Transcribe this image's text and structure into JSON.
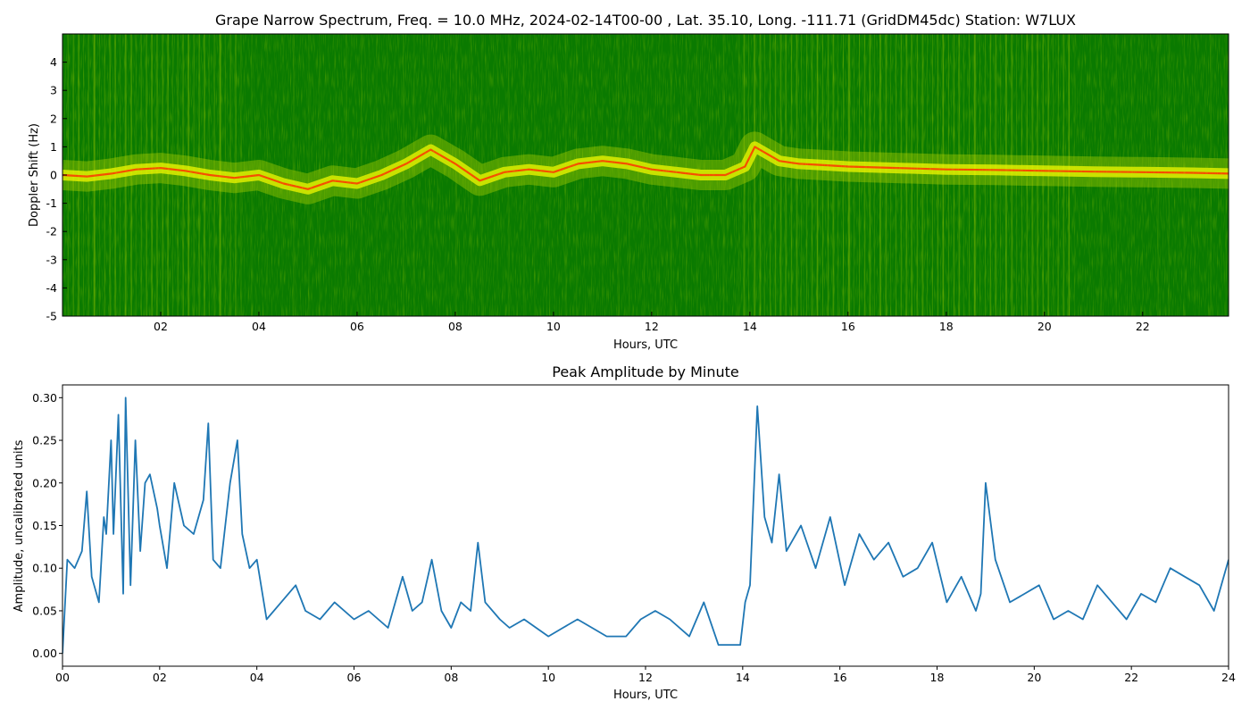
{
  "spectrogram": {
    "title": "Grape Narrow Spectrum, Freq. = 10.0 MHz, 2024-02-14T00-00 , Lat.  35.10, Long. -111.71 (GridDM45dc) Station: W7LUX",
    "xlabel": "Hours, UTC",
    "ylabel": "Doppler Shift (Hz)",
    "x_ticks": [
      "02",
      "04",
      "06",
      "08",
      "10",
      "12",
      "14",
      "16",
      "18",
      "20",
      "22"
    ],
    "y_ticks": [
      "4",
      "3",
      "2",
      "1",
      "0",
      "-1",
      "-2",
      "-3",
      "-4",
      "-5"
    ],
    "colors": {
      "background": "#0a7a00",
      "mid": "#c8e000",
      "high": "#ffff00",
      "peak": "#ff3000"
    }
  },
  "chart_data": [
    {
      "type": "heatmap",
      "title": "Grape Narrow Spectrum, Freq. = 10.0 MHz, 2024-02-14T00-00 , Lat.  35.10, Long. -111.71 (GridDM45dc) Station: W7LUX",
      "xlabel": "Hours, UTC",
      "ylabel": "Doppler Shift (Hz)",
      "xlim": [
        0,
        23.75
      ],
      "ylim": [
        -5,
        5
      ],
      "doppler_trace": {
        "hours": [
          0,
          0.5,
          1,
          1.5,
          2,
          2.5,
          3,
          3.5,
          4,
          4.5,
          5,
          5.5,
          6,
          6.5,
          7,
          7.5,
          8,
          8.5,
          9,
          9.5,
          10,
          10.5,
          11,
          11.5,
          12,
          12.5,
          13,
          13.5,
          13.9,
          14.1,
          14.3,
          14.6,
          15,
          15.5,
          16,
          17,
          18,
          19,
          20,
          21,
          22,
          23,
          23.75
        ],
        "doppler_hz": [
          0,
          -0.05,
          0.05,
          0.2,
          0.25,
          0.15,
          0,
          -0.1,
          0,
          -0.3,
          -0.5,
          -0.2,
          -0.3,
          0,
          0.4,
          0.9,
          0.4,
          -0.2,
          0.1,
          0.2,
          0.1,
          0.4,
          0.5,
          0.4,
          0.2,
          0.1,
          0,
          0,
          0.3,
          1.0,
          0.8,
          0.5,
          0.4,
          0.35,
          0.3,
          0.25,
          0.2,
          0.18,
          0.15,
          0.12,
          0.1,
          0.08,
          0.05
        ]
      }
    },
    {
      "type": "line",
      "title": "Peak Amplitude by Minute",
      "xlabel": "Hours, UTC",
      "ylabel": "Amplitude, uncalibrated units",
      "xlim": [
        0,
        24
      ],
      "ylim": [
        -0.015,
        0.315
      ],
      "x_ticks": [
        "00",
        "02",
        "04",
        "06",
        "08",
        "10",
        "12",
        "14",
        "16",
        "18",
        "20",
        "22",
        "24"
      ],
      "y_ticks": [
        "0.00",
        "0.05",
        "0.10",
        "0.15",
        "0.20",
        "0.25",
        "0.30"
      ],
      "line_color": "#1f77b4",
      "x": [
        0,
        0.1,
        0.25,
        0.4,
        0.5,
        0.6,
        0.75,
        0.85,
        0.9,
        1.0,
        1.05,
        1.15,
        1.25,
        1.3,
        1.4,
        1.5,
        1.6,
        1.7,
        1.8,
        1.95,
        2.0,
        2.15,
        2.3,
        2.5,
        2.7,
        2.9,
        3.0,
        3.1,
        3.25,
        3.45,
        3.6,
        3.7,
        3.85,
        4.0,
        4.2,
        4.5,
        4.8,
        5.0,
        5.3,
        5.6,
        6.0,
        6.3,
        6.5,
        6.7,
        7.0,
        7.2,
        7.4,
        7.6,
        7.8,
        8.0,
        8.2,
        8.4,
        8.55,
        8.7,
        9.0,
        9.2,
        9.5,
        10.0,
        10.3,
        10.6,
        10.9,
        11.2,
        11.6,
        11.9,
        12.2,
        12.5,
        12.9,
        13.2,
        13.5,
        13.7,
        13.85,
        13.95,
        14.05,
        14.15,
        14.3,
        14.45,
        14.6,
        14.75,
        14.9,
        15.2,
        15.5,
        15.8,
        16.1,
        16.4,
        16.7,
        17.0,
        17.3,
        17.6,
        17.9,
        18.2,
        18.5,
        18.8,
        18.9,
        19.0,
        19.2,
        19.5,
        19.8,
        20.1,
        20.4,
        20.7,
        21.0,
        21.3,
        21.6,
        21.9,
        22.2,
        22.5,
        22.8,
        23.1,
        23.4,
        23.7,
        24.0
      ],
      "y": [
        0.0,
        0.11,
        0.1,
        0.12,
        0.19,
        0.09,
        0.06,
        0.16,
        0.14,
        0.25,
        0.14,
        0.28,
        0.07,
        0.3,
        0.08,
        0.25,
        0.12,
        0.2,
        0.21,
        0.17,
        0.15,
        0.1,
        0.2,
        0.15,
        0.14,
        0.18,
        0.27,
        0.11,
        0.1,
        0.2,
        0.25,
        0.14,
        0.1,
        0.11,
        0.04,
        0.06,
        0.08,
        0.05,
        0.04,
        0.06,
        0.04,
        0.05,
        0.04,
        0.03,
        0.09,
        0.05,
        0.06,
        0.11,
        0.05,
        0.03,
        0.06,
        0.05,
        0.13,
        0.06,
        0.04,
        0.03,
        0.04,
        0.02,
        0.03,
        0.04,
        0.03,
        0.02,
        0.02,
        0.04,
        0.05,
        0.04,
        0.02,
        0.06,
        0.01,
        0.01,
        0.01,
        0.01,
        0.06,
        0.08,
        0.29,
        0.16,
        0.13,
        0.21,
        0.12,
        0.15,
        0.1,
        0.16,
        0.08,
        0.14,
        0.11,
        0.13,
        0.09,
        0.1,
        0.13,
        0.06,
        0.09,
        0.05,
        0.07,
        0.2,
        0.11,
        0.06,
        0.07,
        0.08,
        0.04,
        0.05,
        0.04,
        0.08,
        0.06,
        0.04,
        0.07,
        0.06,
        0.1,
        0.09,
        0.08,
        0.05,
        0.11
      ]
    }
  ]
}
